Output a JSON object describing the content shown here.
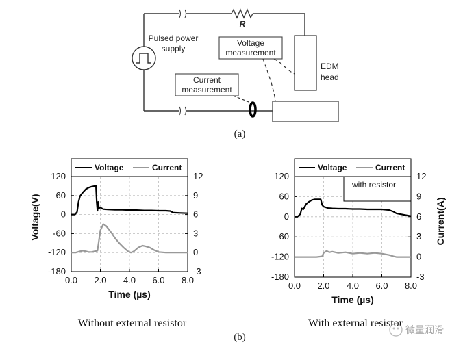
{
  "circuit": {
    "resistor_label": "R",
    "power_label_1": "Pulsed power",
    "power_label_2": "supply",
    "voltage_box_1": "Voltage",
    "voltage_box_2": "measurement",
    "current_box_1": "Current",
    "current_box_2": "measurement",
    "edm_label_1": "EDM",
    "edm_label_2": "head",
    "caption": "(a)"
  },
  "figure_caption": "(b)",
  "watermark": "微量润滑",
  "chart_data": [
    {
      "type": "line",
      "caption": "Without external resistor",
      "legend": [
        "Voltage",
        "Current"
      ],
      "legend_placement": "top",
      "annotation": "",
      "xlabel": "Time (µs)",
      "ylabel_left": "Voltage(V)",
      "ylabel_right": "",
      "xlim": [
        0,
        8
      ],
      "ylim_left": [
        -180,
        120
      ],
      "ylim_right": [
        -3,
        12
      ],
      "x_ticks": [
        "0.0",
        "2.0",
        "4.0",
        "6.0",
        "8.0"
      ],
      "y_ticks_left": [
        "120",
        "60",
        "0",
        "-60",
        "-120",
        "-180"
      ],
      "y_ticks_right": [
        "12",
        "9",
        "6",
        "3",
        "0",
        "-3"
      ],
      "grid": true,
      "series": [
        {
          "name": "Voltage",
          "axis": "left",
          "color": "#000000",
          "x": [
            0.0,
            0.25,
            0.4,
            0.5,
            0.6,
            0.8,
            1.0,
            1.2,
            1.4,
            1.6,
            1.7,
            1.75,
            1.8,
            1.85,
            1.9,
            2.0,
            2.2,
            2.5,
            3.0,
            3.5,
            4.0,
            4.5,
            5.0,
            5.5,
            6.0,
            6.5,
            6.8,
            7.0,
            7.5,
            8.0
          ],
          "y": [
            0,
            0,
            8,
            40,
            58,
            70,
            80,
            85,
            88,
            90,
            90,
            40,
            12,
            40,
            20,
            22,
            17,
            16,
            15,
            15,
            14,
            14,
            13,
            13,
            12,
            12,
            11,
            6,
            5,
            4
          ]
        },
        {
          "name": "Current",
          "axis": "right",
          "color": "#999999",
          "x": [
            0.0,
            0.3,
            0.6,
            0.8,
            1.0,
            1.2,
            1.4,
            1.6,
            1.8,
            2.0,
            2.2,
            2.4,
            2.6,
            2.8,
            3.0,
            3.3,
            3.6,
            3.9,
            4.1,
            4.3,
            4.6,
            4.9,
            5.1,
            5.4,
            5.7,
            6.0,
            6.5,
            7.0,
            7.5,
            8.0
          ],
          "y": [
            0.0,
            0.0,
            0.2,
            0.3,
            0.2,
            0.1,
            0.1,
            0.2,
            0.3,
            3.5,
            4.5,
            4.2,
            3.6,
            3.0,
            2.3,
            1.5,
            0.8,
            0.2,
            0.0,
            0.2,
            0.8,
            1.1,
            1.0,
            0.8,
            0.4,
            0.1,
            0.0,
            0.0,
            0.0,
            0.0
          ]
        }
      ]
    },
    {
      "type": "line",
      "caption": "With external resistor",
      "legend": [
        "Voltage",
        "Current"
      ],
      "legend_placement": "top",
      "annotation": "with resistor",
      "xlabel": "Time (µs)",
      "ylabel_left": "",
      "ylabel_right": "Current(A)",
      "xlim": [
        0,
        8
      ],
      "ylim_left": [
        -180,
        120
      ],
      "ylim_right": [
        -3,
        12
      ],
      "x_ticks": [
        "0.0",
        "2.0",
        "4.0",
        "6.0",
        "8.0"
      ],
      "y_ticks_left": [
        "120",
        "60",
        "0",
        "-60",
        "-120",
        "-180"
      ],
      "y_ticks_right": [
        "12",
        "9",
        "6",
        "3",
        "0",
        "-3"
      ],
      "grid": true,
      "series": [
        {
          "name": "Voltage",
          "axis": "left",
          "color": "#000000",
          "x": [
            0.0,
            0.2,
            0.4,
            0.5,
            0.6,
            0.8,
            1.0,
            1.2,
            1.4,
            1.6,
            1.8,
            1.9,
            2.0,
            2.3,
            2.6,
            3.0,
            3.5,
            4.0,
            4.5,
            5.0,
            5.5,
            6.0,
            6.5,
            6.8,
            7.0,
            7.5,
            8.0
          ],
          "y": [
            0,
            0,
            8,
            25,
            22,
            38,
            45,
            50,
            52,
            52,
            52,
            35,
            30,
            26,
            25,
            24,
            24,
            23,
            23,
            22,
            22,
            22,
            20,
            15,
            10,
            6,
            2
          ]
        },
        {
          "name": "Current",
          "axis": "right",
          "color": "#999999",
          "x": [
            0.0,
            0.5,
            1.0,
            1.5,
            1.9,
            2.0,
            2.2,
            2.4,
            2.6,
            3.0,
            3.5,
            4.0,
            4.5,
            5.0,
            5.5,
            6.0,
            6.5,
            6.8,
            7.0,
            7.5,
            8.0
          ],
          "y": [
            0.0,
            0.0,
            0.0,
            0.0,
            0.1,
            0.6,
            0.9,
            0.7,
            0.8,
            0.6,
            0.7,
            0.5,
            0.6,
            0.5,
            0.6,
            0.5,
            0.3,
            0.1,
            0.0,
            0.0,
            0.0
          ]
        }
      ]
    }
  ]
}
